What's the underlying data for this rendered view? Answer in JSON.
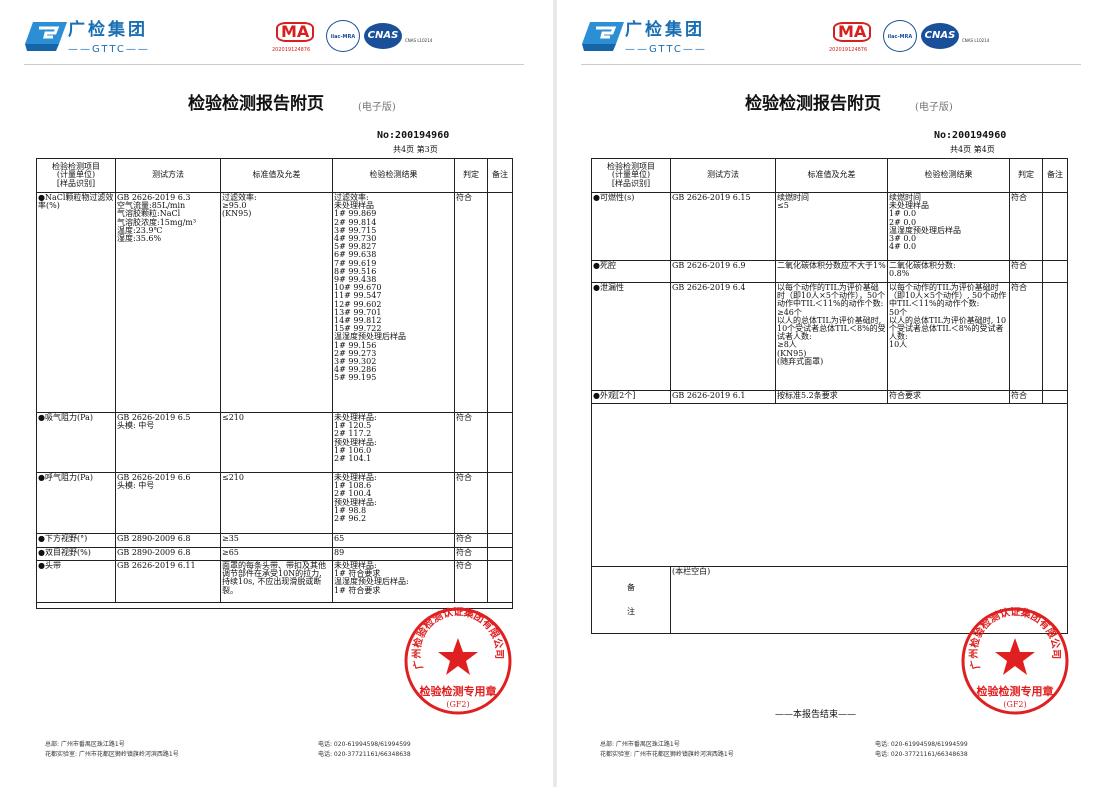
{
  "header": {
    "brand_cn": "广检集团",
    "brand_en": "GTTC",
    "ma_label": "MA",
    "ma_number": "202019124876",
    "ilac_label": "ilac-MRA",
    "cnas_label": "CNAS",
    "cnas_number": "CNAS L10214",
    "title": "检验检测报告附页",
    "edition": "(电子版)",
    "report_no": "No:200194960"
  },
  "columns": [
    "检验检测项目\n(计量单位)\n[样品识别]",
    "测试方法",
    "标准值及允差",
    "检验检测结果",
    "判定",
    "备注"
  ],
  "pages": [
    {
      "page_info": "共4页  第3页",
      "rows": [
        {
          "item": "●NaCl颗粒物过滤效率(%)",
          "method": "GB 2626-2019 6.3\n空气流量:85L/min\n气溶胶颗粒:NaCl\n气溶胶浓度:15mg/m³\n温度:23.9℃\n湿度:35.6%",
          "standard": "过滤效率:\n≥95.0\n(KN95)",
          "result": "过滤效率:\n未处理样品\n1#  99.869\n2#  99.814\n3#  99.715\n4#  99.730\n5#  99.827\n6#  99.638\n7#  99.619\n8#  99.516\n9#  99.438\n10# 99.670\n11# 99.547\n12# 99.602\n13# 99.701\n14# 99.812\n15# 99.722\n温湿度预处理后样品\n1#  99.156\n2#  99.273\n3#  99.302\n4#  99.286\n5#  99.195",
          "verdict": "符合",
          "remark": ""
        },
        {
          "item": "●吸气阻力(Pa)",
          "method": "GB 2626-2019 6.5\n头模: 中号",
          "standard": "≤210",
          "result": "未处理样品:\n1# 120.5\n2# 117.2\n预处理样品:\n1# 106.0\n2# 104.1",
          "verdict": "符合",
          "remark": ""
        },
        {
          "item": "●呼气阻力(Pa)",
          "method": "GB 2626-2019 6.6\n头模: 中号",
          "standard": "≤210",
          "result": "未处理样品:\n1# 108.6\n2# 100.4\n预处理样品:\n1# 98.8\n2# 96.2",
          "verdict": "符合",
          "remark": ""
        },
        {
          "item": "●下方视野(°)",
          "method": "GB 2890-2009 6.8",
          "standard": "≥35",
          "result": "65",
          "verdict": "符合",
          "remark": ""
        },
        {
          "item": "●双目视野(%)",
          "method": "GB 2890-2009 6.8",
          "standard": "≥65",
          "result": "89",
          "verdict": "符合",
          "remark": ""
        },
        {
          "item": "●头带",
          "method": "GB 2626-2019 6.11",
          "standard": "面罩的每条头带、带扣及其他调节部件在承受10N的拉力, 持续10s, 不应出现滑脱或断裂。",
          "result": "未处理样品:\n1# 符合要求\n温湿度预处理后样品:\n1# 符合要求",
          "verdict": "符合",
          "remark": ""
        }
      ]
    },
    {
      "page_info": "共4页  第4页",
      "rows": [
        {
          "item": "●可燃性(s)",
          "method": "GB 2626-2019 6.15",
          "standard": "续燃时间\n≤5",
          "result": "续燃时间\n未处理样品\n1# 0.0\n2# 0.0\n温湿度预处理后样品\n3# 0.0\n4# 0.0",
          "verdict": "符合",
          "remark": ""
        },
        {
          "item": "●死腔",
          "method": "GB 2626-2019 6.9",
          "standard": "二氧化碳体积分数应不大于1%",
          "result": "二氧化碳体积分数:\n0.8%",
          "verdict": "符合",
          "remark": ""
        },
        {
          "item": "●泄漏性",
          "method": "GB 2626-2019 6.4",
          "standard": "以每个动作的TIL为评价基础时（即10人×5个动作），50个动作中TIL＜11%的动作个数:\n≥46个\n以人的总体TIL为评价基础时, 10个受试者总体TIL＜8%的受试者人数:\n≥8人\n(KN95)\n(随弃式面罩)",
          "result": "以每个动作的TIL为评价基础时（即10人×5个动作）, 50个动作中TIL＜11%的动作个数:\n50个\n以人的总体TIL为评价基础时, 10个受试者总体TIL＜8%的受试者人数:\n10人",
          "verdict": "符合",
          "remark": ""
        },
        {
          "item": "●外观[2个]",
          "method": "GB 2626-2019 6.1",
          "standard": "按标准5.2条要求",
          "result": "符合要求",
          "verdict": "符合",
          "remark": ""
        }
      ],
      "remarks_label": "备\n\n\n注",
      "remarks_text": "(本栏空白)",
      "end_text": "——本报告结束——"
    }
  ],
  "stamp": {
    "org": "广州检验检测认证集团有限公司",
    "purpose": "检验检测专用章",
    "code": "(GF2)",
    "color": "#e02020"
  },
  "footer": {
    "hq": "总部: 广州市番禺区珠江路1号",
    "lab": "花都实验室: 广州市花都区狮岭镇旗岭河滨西路1号",
    "tel1": "电话: 020-61994598/61994599",
    "tel2": "电话: 020-37721161/66348638"
  },
  "colors": {
    "brand": "#1a6fb3",
    "stamp": "#e02020"
  }
}
